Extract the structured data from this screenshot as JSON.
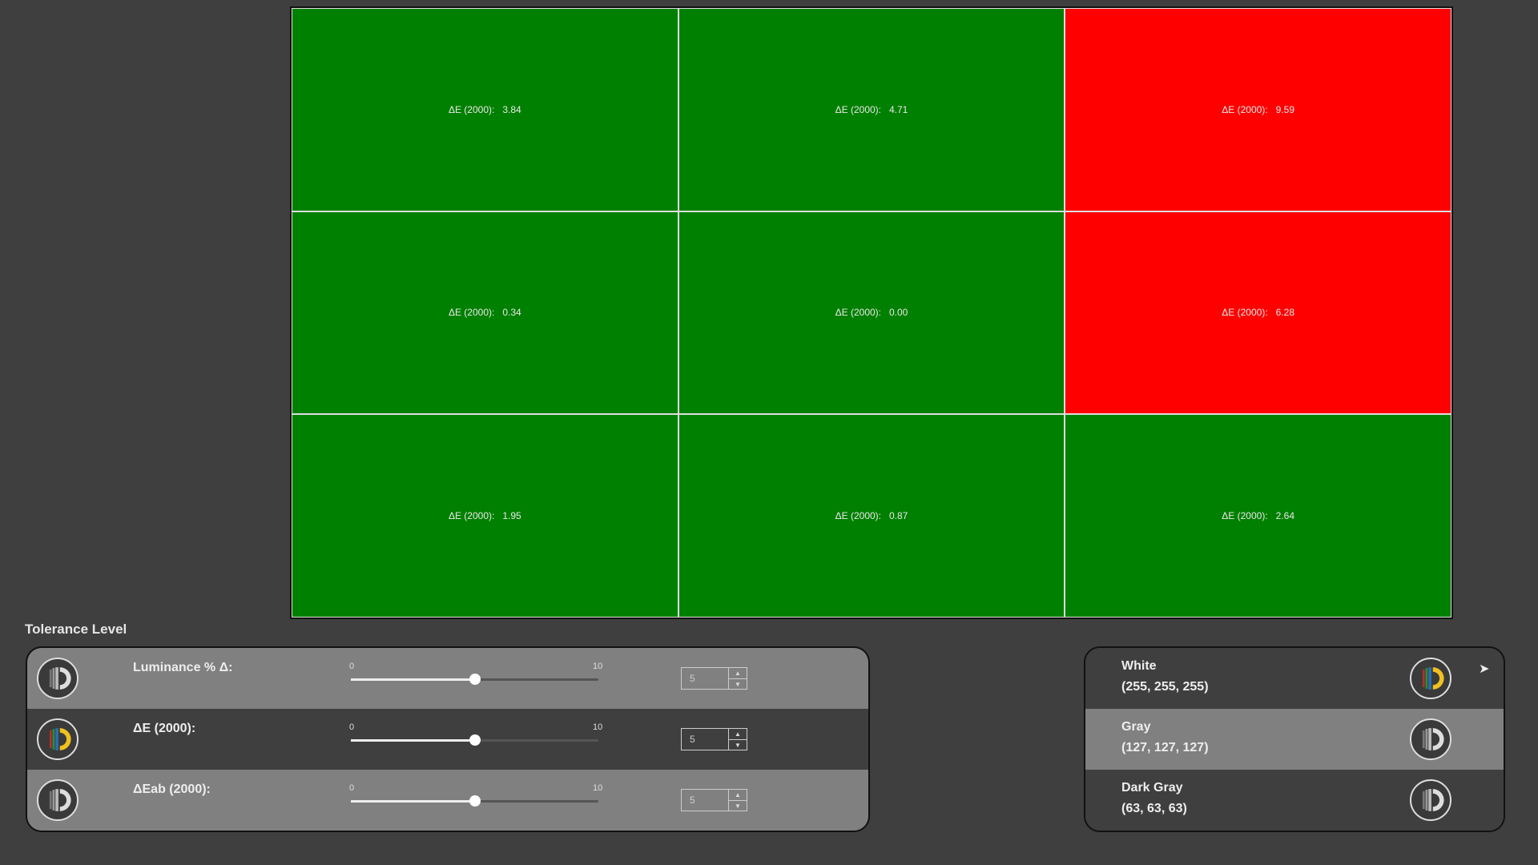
{
  "grid": {
    "label": "ΔE (2000):",
    "cells": [
      {
        "value": "3.84",
        "status": "pass"
      },
      {
        "value": "4.71",
        "status": "pass"
      },
      {
        "value": "9.59",
        "status": "fail"
      },
      {
        "value": "0.34",
        "status": "pass"
      },
      {
        "value": "0.00",
        "status": "pass"
      },
      {
        "value": "6.28",
        "status": "fail"
      },
      {
        "value": "1.95",
        "status": "pass"
      },
      {
        "value": "0.87",
        "status": "pass"
      },
      {
        "value": "2.64",
        "status": "pass"
      }
    ],
    "colors": {
      "pass": "#008000",
      "fail": "#ff0000"
    }
  },
  "tolerance": {
    "title": "Tolerance Level",
    "rows": [
      {
        "label": "Luminance % Δ:",
        "min": "0",
        "max": "10",
        "value": "5",
        "icon": "grayscale-badge-icon"
      },
      {
        "label": "ΔE (2000):",
        "min": "0",
        "max": "10",
        "value": "5",
        "icon": "color-badge-icon"
      },
      {
        "label": "ΔEab (2000):",
        "min": "0",
        "max": "10",
        "value": "5",
        "icon": "grayscale-badge-icon"
      }
    ]
  },
  "patches": [
    {
      "name": "White",
      "rgb": "(255, 255, 255)",
      "icon": "color-badge-icon"
    },
    {
      "name": "Gray",
      "rgb": "(127, 127, 127)",
      "icon": "grayscale-badge-icon"
    },
    {
      "name": "Dark Gray",
      "rgb": "(63, 63, 63)",
      "icon": "grayscale-badge-icon"
    }
  ]
}
